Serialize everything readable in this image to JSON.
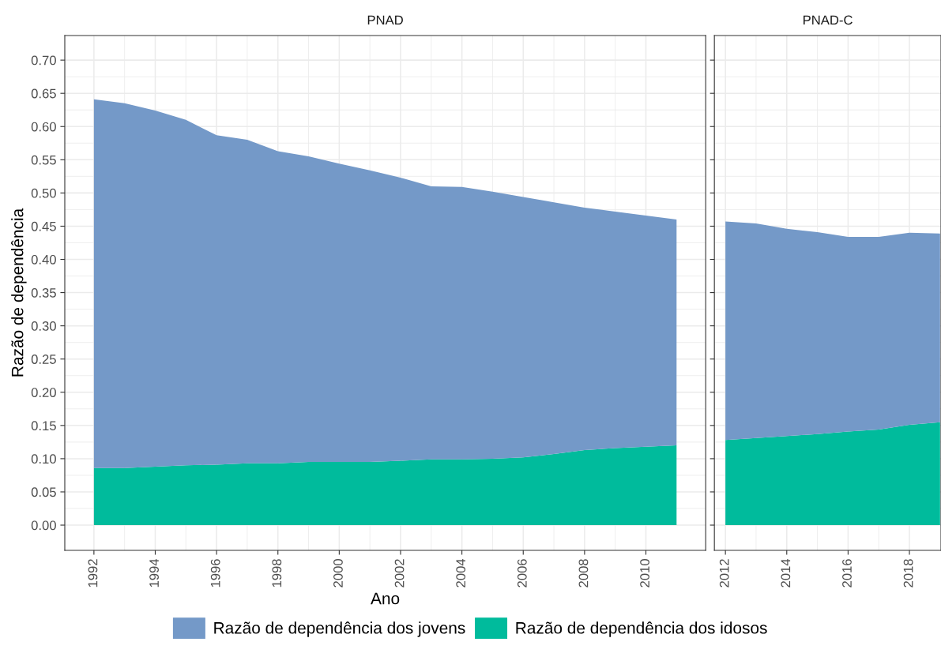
{
  "chart_data": [
    {
      "type": "area",
      "title": "PNAD",
      "xlabel": "Ano",
      "ylabel": "Razão de dependência",
      "stacked": true,
      "grid": true,
      "legend": "bottom",
      "x": [
        1992,
        1993,
        1994,
        1995,
        1996,
        1997,
        1998,
        1999,
        2000,
        2001,
        2002,
        2003,
        2004,
        2005,
        2006,
        2007,
        2008,
        2009,
        2010,
        2011
      ],
      "xlim": [
        1991.05,
        2011.95
      ],
      "xticks": [
        1992,
        1994,
        1996,
        1998,
        2000,
        2002,
        2004,
        2006,
        2008,
        2010
      ],
      "ylim": [
        -0.038,
        0.737
      ],
      "yticks": [
        {
          "value": 0,
          "label": "0.00"
        },
        {
          "value": 0.05,
          "label": "0.05"
        },
        {
          "value": 0.1,
          "label": "0.10"
        },
        {
          "value": 0.15,
          "label": "0.15"
        },
        {
          "value": 0.2,
          "label": "0.20"
        },
        {
          "value": 0.25,
          "label": "0.25"
        },
        {
          "value": 0.3,
          "label": "0.30"
        },
        {
          "value": 0.35,
          "label": "0.35"
        },
        {
          "value": 0.4,
          "label": "0.40"
        },
        {
          "value": 0.45,
          "label": "0.45"
        },
        {
          "value": 0.5,
          "label": "0.50"
        },
        {
          "value": 0.55,
          "label": "0.55"
        },
        {
          "value": 0.6,
          "label": "0.60"
        },
        {
          "value": 0.65,
          "label": "0.65"
        },
        {
          "value": 0.7,
          "label": "0.70"
        }
      ],
      "series": [
        {
          "name": "Razão de dependência dos idosos",
          "color": "#00bb9c",
          "values": [
            0.086,
            0.086,
            0.088,
            0.09,
            0.091,
            0.093,
            0.093,
            0.095,
            0.095,
            0.095,
            0.097,
            0.099,
            0.099,
            0.1,
            0.102,
            0.107,
            0.113,
            0.116,
            0.118,
            0.12
          ]
        },
        {
          "name": "Razão de dependência dos jovens",
          "color": "#7499c8",
          "values": [
            0.555,
            0.549,
            0.536,
            0.52,
            0.496,
            0.487,
            0.47,
            0.46,
            0.449,
            0.439,
            0.426,
            0.411,
            0.41,
            0.402,
            0.392,
            0.379,
            0.365,
            0.356,
            0.348,
            0.34
          ]
        }
      ]
    },
    {
      "type": "area",
      "title": "PNAD-C",
      "stacked": true,
      "grid": true,
      "tick_labels": "x",
      "x": [
        2012,
        2013,
        2014,
        2015,
        2016,
        2017,
        2018,
        2019
      ],
      "xlim": [
        2011.64,
        2019.03
      ],
      "xticks": [
        2012,
        2014,
        2016,
        2018
      ],
      "ylim": [
        -0.038,
        0.737
      ],
      "yticks": [
        0,
        0.05,
        0.1,
        0.15,
        0.2,
        0.25,
        0.3,
        0.35,
        0.4,
        0.45,
        0.5,
        0.55,
        0.6,
        0.65,
        0.7
      ],
      "series": [
        {
          "color": "#00bb9c",
          "values": [
            0.128,
            0.131,
            0.134,
            0.137,
            0.141,
            0.144,
            0.151,
            0.155
          ]
        },
        {
          "color": "#7499c8",
          "values": [
            0.329,
            0.323,
            0.312,
            0.304,
            0.293,
            0.29,
            0.289,
            0.284
          ]
        }
      ]
    }
  ]
}
